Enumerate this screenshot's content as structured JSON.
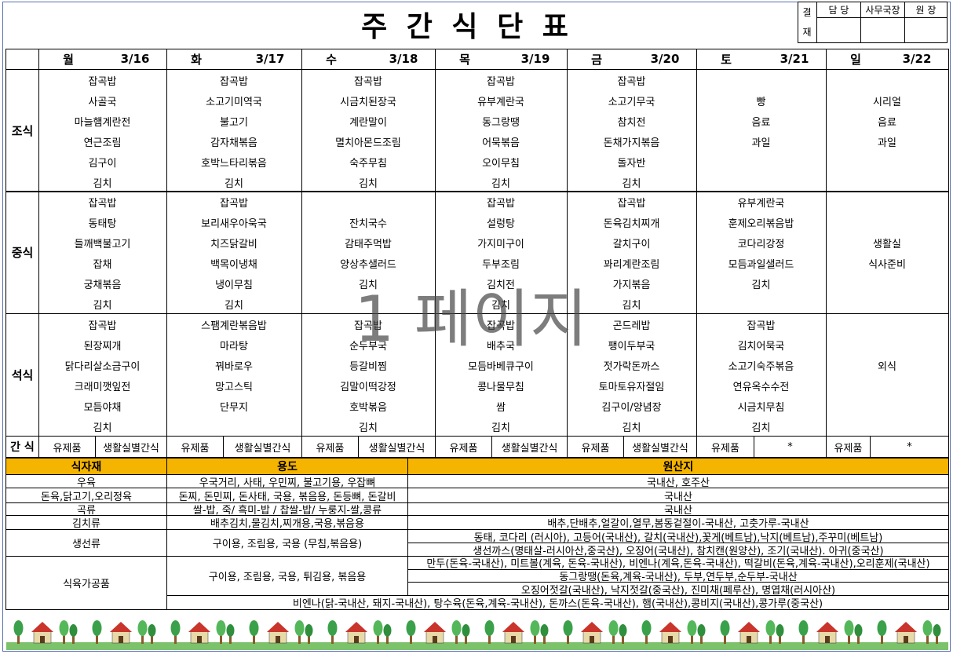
{
  "title": "주 간 식 단 표",
  "approval": {
    "label": [
      "결",
      "재"
    ],
    "roles": [
      "담 당",
      "사무국장",
      "원 장"
    ]
  },
  "days": [
    {
      "day": "월",
      "date": "3/16"
    },
    {
      "day": "화",
      "date": "3/17"
    },
    {
      "day": "수",
      "date": "3/18"
    },
    {
      "day": "목",
      "date": "3/19"
    },
    {
      "day": "금",
      "date": "3/20"
    },
    {
      "day": "토",
      "date": "3/21"
    },
    {
      "day": "일",
      "date": "3/22"
    }
  ],
  "meals": [
    {
      "name": "조식",
      "menus": [
        [
          "잡곡밥",
          "사골국",
          "마늘햄계란전",
          "연근조림",
          "김구이",
          "김치"
        ],
        [
          "잡곡밥",
          "소고기미역국",
          "불고기",
          "감자채볶음",
          "호박느타리볶음",
          "김치"
        ],
        [
          "잡곡밥",
          "시금치된장국",
          "계란말이",
          "멸치아몬드조림",
          "숙주무침",
          "김치"
        ],
        [
          "잡곡밥",
          "유부계란국",
          "동그랑땡",
          "어묵볶음",
          "오이무침",
          "김치"
        ],
        [
          "잡곡밥",
          "소고기무국",
          "참치전",
          "돈채가지볶음",
          "돌자반",
          "김치"
        ],
        [
          null,
          "빵",
          "음료",
          "과일",
          null,
          null
        ],
        [
          null,
          "시리얼",
          "음료",
          "과일",
          null,
          null
        ]
      ]
    },
    {
      "name": "중식",
      "menus": [
        [
          "잡곡밥",
          "동태탕",
          "들깨백불고기",
          "잡채",
          "궁채볶음",
          "김치"
        ],
        [
          "잡곡밥",
          "보리새우아욱국",
          "치즈닭갈비",
          "백목이냉채",
          "냉이무침",
          "김치"
        ],
        [
          null,
          "잔치국수",
          "감태주먹밥",
          "양상추샐러드",
          "김치",
          null
        ],
        [
          "잡곡밥",
          "설렁탕",
          "가지미구이",
          "두부조림",
          "김치전",
          "김치"
        ],
        [
          "잡곡밥",
          "돈육김치찌개",
          "갈치구이",
          "꽈리계란조림",
          "가지볶음",
          "김치"
        ],
        [
          "유부계란국",
          "훈제오리볶음밥",
          "코다리강정",
          "모듬과일샐러드",
          "김치",
          null
        ],
        [
          null,
          null,
          "생활실",
          "식사준비",
          null,
          null
        ]
      ]
    },
    {
      "name": "석식",
      "menus": [
        [
          "잡곡밥",
          "된장찌개",
          "닭다리살소금구이",
          "크래미깻잎전",
          "모듬야채",
          "김치"
        ],
        [
          "스팸계란볶음밥",
          "마라탕",
          "꿔바로우",
          "망고스틱",
          "단무지",
          null
        ],
        [
          "잡곡밥",
          "순두부국",
          "등갈비찜",
          "김말이떡강정",
          "호박볶음",
          "김치"
        ],
        [
          "잡곡밥",
          "배추국",
          "모듬바베큐구이",
          "콩나물무침",
          "쌈",
          "김치"
        ],
        [
          "곤드레밥",
          "팽이두부국",
          "젓가락돈까스",
          "토마토유자절임",
          "김구이/양념장",
          "김치"
        ],
        [
          "잡곡밥",
          "김치어묵국",
          "소고기숙주볶음",
          "연유옥수수전",
          "시금치무침",
          "김치"
        ],
        [
          null,
          null,
          "외식",
          null,
          null,
          null
        ]
      ]
    }
  ],
  "snack": {
    "name": "간 식",
    "items": [
      [
        "유제품",
        "생활실별간식"
      ],
      [
        "유제품",
        "생활실별간식"
      ],
      [
        "유제품",
        "생활실별간식"
      ],
      [
        "유제품",
        "생활실별간식"
      ],
      [
        "유제품",
        "생활실별간식"
      ],
      [
        "유제품",
        "*"
      ],
      [
        "유제품",
        "*"
      ]
    ]
  },
  "watermark": "1 페이지",
  "origin": {
    "headers": [
      "식자재",
      "용도",
      "원산지"
    ],
    "rows": [
      {
        "item": "우육",
        "use": "우국거리, 사태, 우민찌, 불고기용, 우잡뼈",
        "origin": [
          "국내산, 호주산"
        ]
      },
      {
        "item": "돈육,닭고기,오리정육",
        "use": "돈찌, 돈민찌, 돈사태, 국용, 볶음용, 돈등뼈, 돈갈비",
        "origin": [
          "국내산"
        ]
      },
      {
        "item": "곡류",
        "use": "쌀-밥, 죽/ 흑미-밥 / 찹쌀-밥/ 누룽지-쌀,콩류",
        "origin": [
          "국내산"
        ]
      },
      {
        "item": "김치류",
        "use": "배추김치,물김치,찌개용,국용,볶음용",
        "origin": [
          "배추,단배추,얼갈이,열무,봄동겉절이-국내산, 고춧가루-국내산"
        ]
      },
      {
        "item": "생선류",
        "use": "구이용, 조림용, 국용 (무침,볶음용)",
        "origin": [
          "동태, 코다리 (러시아), 고등어(국내산), 갈치(국내산),꽃게(베트남),낙지(베트남),주꾸미(베트남)",
          "생선까스(명태살-러시아산,중국산), 오징어(국내산), 참치캔(원양산), 조기(국내산). 아귀(중국산)"
        ]
      },
      {
        "item": "식육가공품",
        "use": "구이용, 조림용, 국용, 튀김용, 볶음용",
        "origin": [
          "만두(돈육-국내산), 미트볼(계육, 돈육-국내산), 비엔나(계육,돈육-국내산), 떡갈비(돈육,계육-국내산),오리훈제(국내산)",
          "동그랑땡(돈육,계육-국내산), 두부,연두부,순두부-국내산",
          "오징어젓갈(국내산), 낙지젓갈(중국산), 진미채(페루산), 명엽채(러시아산)"
        ]
      }
    ],
    "full_width_line": "비엔나(닭-국내산, 돼지-국내산), 탕수육(돈육,계육-국내산), 돈까스(돈육-국내산), 햄(국내산),콩비지(국내산),콩가루(중국산)"
  }
}
